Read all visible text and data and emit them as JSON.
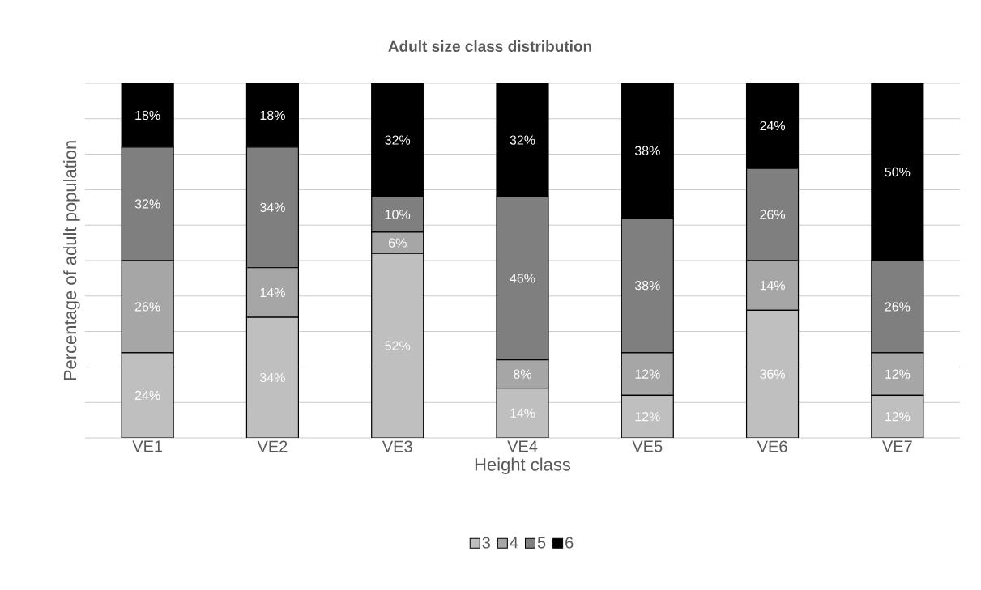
{
  "chart_data": {
    "type": "bar",
    "stacked": true,
    "title": "Adult size class distribution",
    "xlabel": "Height class",
    "ylabel": "Percentage of adult population",
    "categories": [
      "VE1",
      "VE2",
      "VE3",
      "VE4",
      "VE5",
      "VE6",
      "VE7"
    ],
    "series": [
      {
        "name": "3",
        "color": "#bfbfbf",
        "values": [
          24,
          34,
          52,
          14,
          12,
          36,
          12
        ],
        "value_labels": [
          "24%",
          "34%",
          "52%",
          "14%",
          "12%",
          "36%",
          "12%"
        ]
      },
      {
        "name": "4",
        "color": "#a6a6a6",
        "values": [
          26,
          14,
          6,
          8,
          12,
          14,
          12
        ],
        "value_labels": [
          "26%",
          "14%",
          "6%",
          "8%",
          "12%",
          "14%",
          "12%"
        ]
      },
      {
        "name": "5",
        "color": "#7f7f7f",
        "values": [
          32,
          34,
          10,
          46,
          38,
          26,
          26
        ],
        "value_labels": [
          "32%",
          "34%",
          "10%",
          "46%",
          "38%",
          "26%",
          "26%"
        ]
      },
      {
        "name": "6",
        "color": "#000000",
        "values": [
          18,
          18,
          32,
          32,
          38,
          24,
          50
        ],
        "value_labels": [
          "18%",
          "18%",
          "32%",
          "32%",
          "38%",
          "24%",
          "50%"
        ]
      }
    ],
    "ylim": [
      0,
      100
    ],
    "yticks": [
      {
        "value": 0,
        "label": null
      },
      {
        "value": 10,
        "label": null
      },
      {
        "value": 20,
        "label": null
      },
      {
        "value": 30,
        "label": null
      },
      {
        "value": 40,
        "label": null
      },
      {
        "value": 50,
        "label": null
      },
      {
        "value": 60,
        "label": null
      },
      {
        "value": 70,
        "label": null
      },
      {
        "value": 80,
        "label": null
      },
      {
        "value": 90,
        "label": null
      },
      {
        "value": 100,
        "label": null
      }
    ],
    "grid": "y",
    "legend": "bottom",
    "tick_labels": "x"
  }
}
